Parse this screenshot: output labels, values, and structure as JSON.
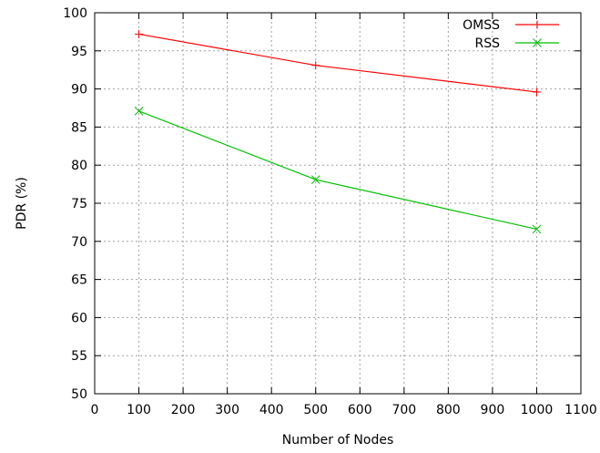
{
  "chart_data": {
    "type": "line",
    "title": "",
    "xlabel": "Number of Nodes",
    "ylabel": "PDR (%)",
    "xlim": [
      0,
      1100
    ],
    "ylim": [
      50,
      100
    ],
    "xticks": [
      0,
      100,
      200,
      300,
      400,
      500,
      600,
      700,
      800,
      900,
      1000,
      1100
    ],
    "yticks": [
      50,
      55,
      60,
      65,
      70,
      75,
      80,
      85,
      90,
      95,
      100
    ],
    "grid": true,
    "legend_position": "top-right",
    "series": [
      {
        "name": "OMSS",
        "color": "#ff0000",
        "marker": "plus",
        "x": [
          100,
          500,
          1000
        ],
        "y": [
          97.2,
          93.1,
          89.6
        ]
      },
      {
        "name": "RSS",
        "color": "#00c000",
        "marker": "cross",
        "x": [
          100,
          500,
          1000
        ],
        "y": [
          87.1,
          78.1,
          71.6
        ]
      }
    ]
  }
}
